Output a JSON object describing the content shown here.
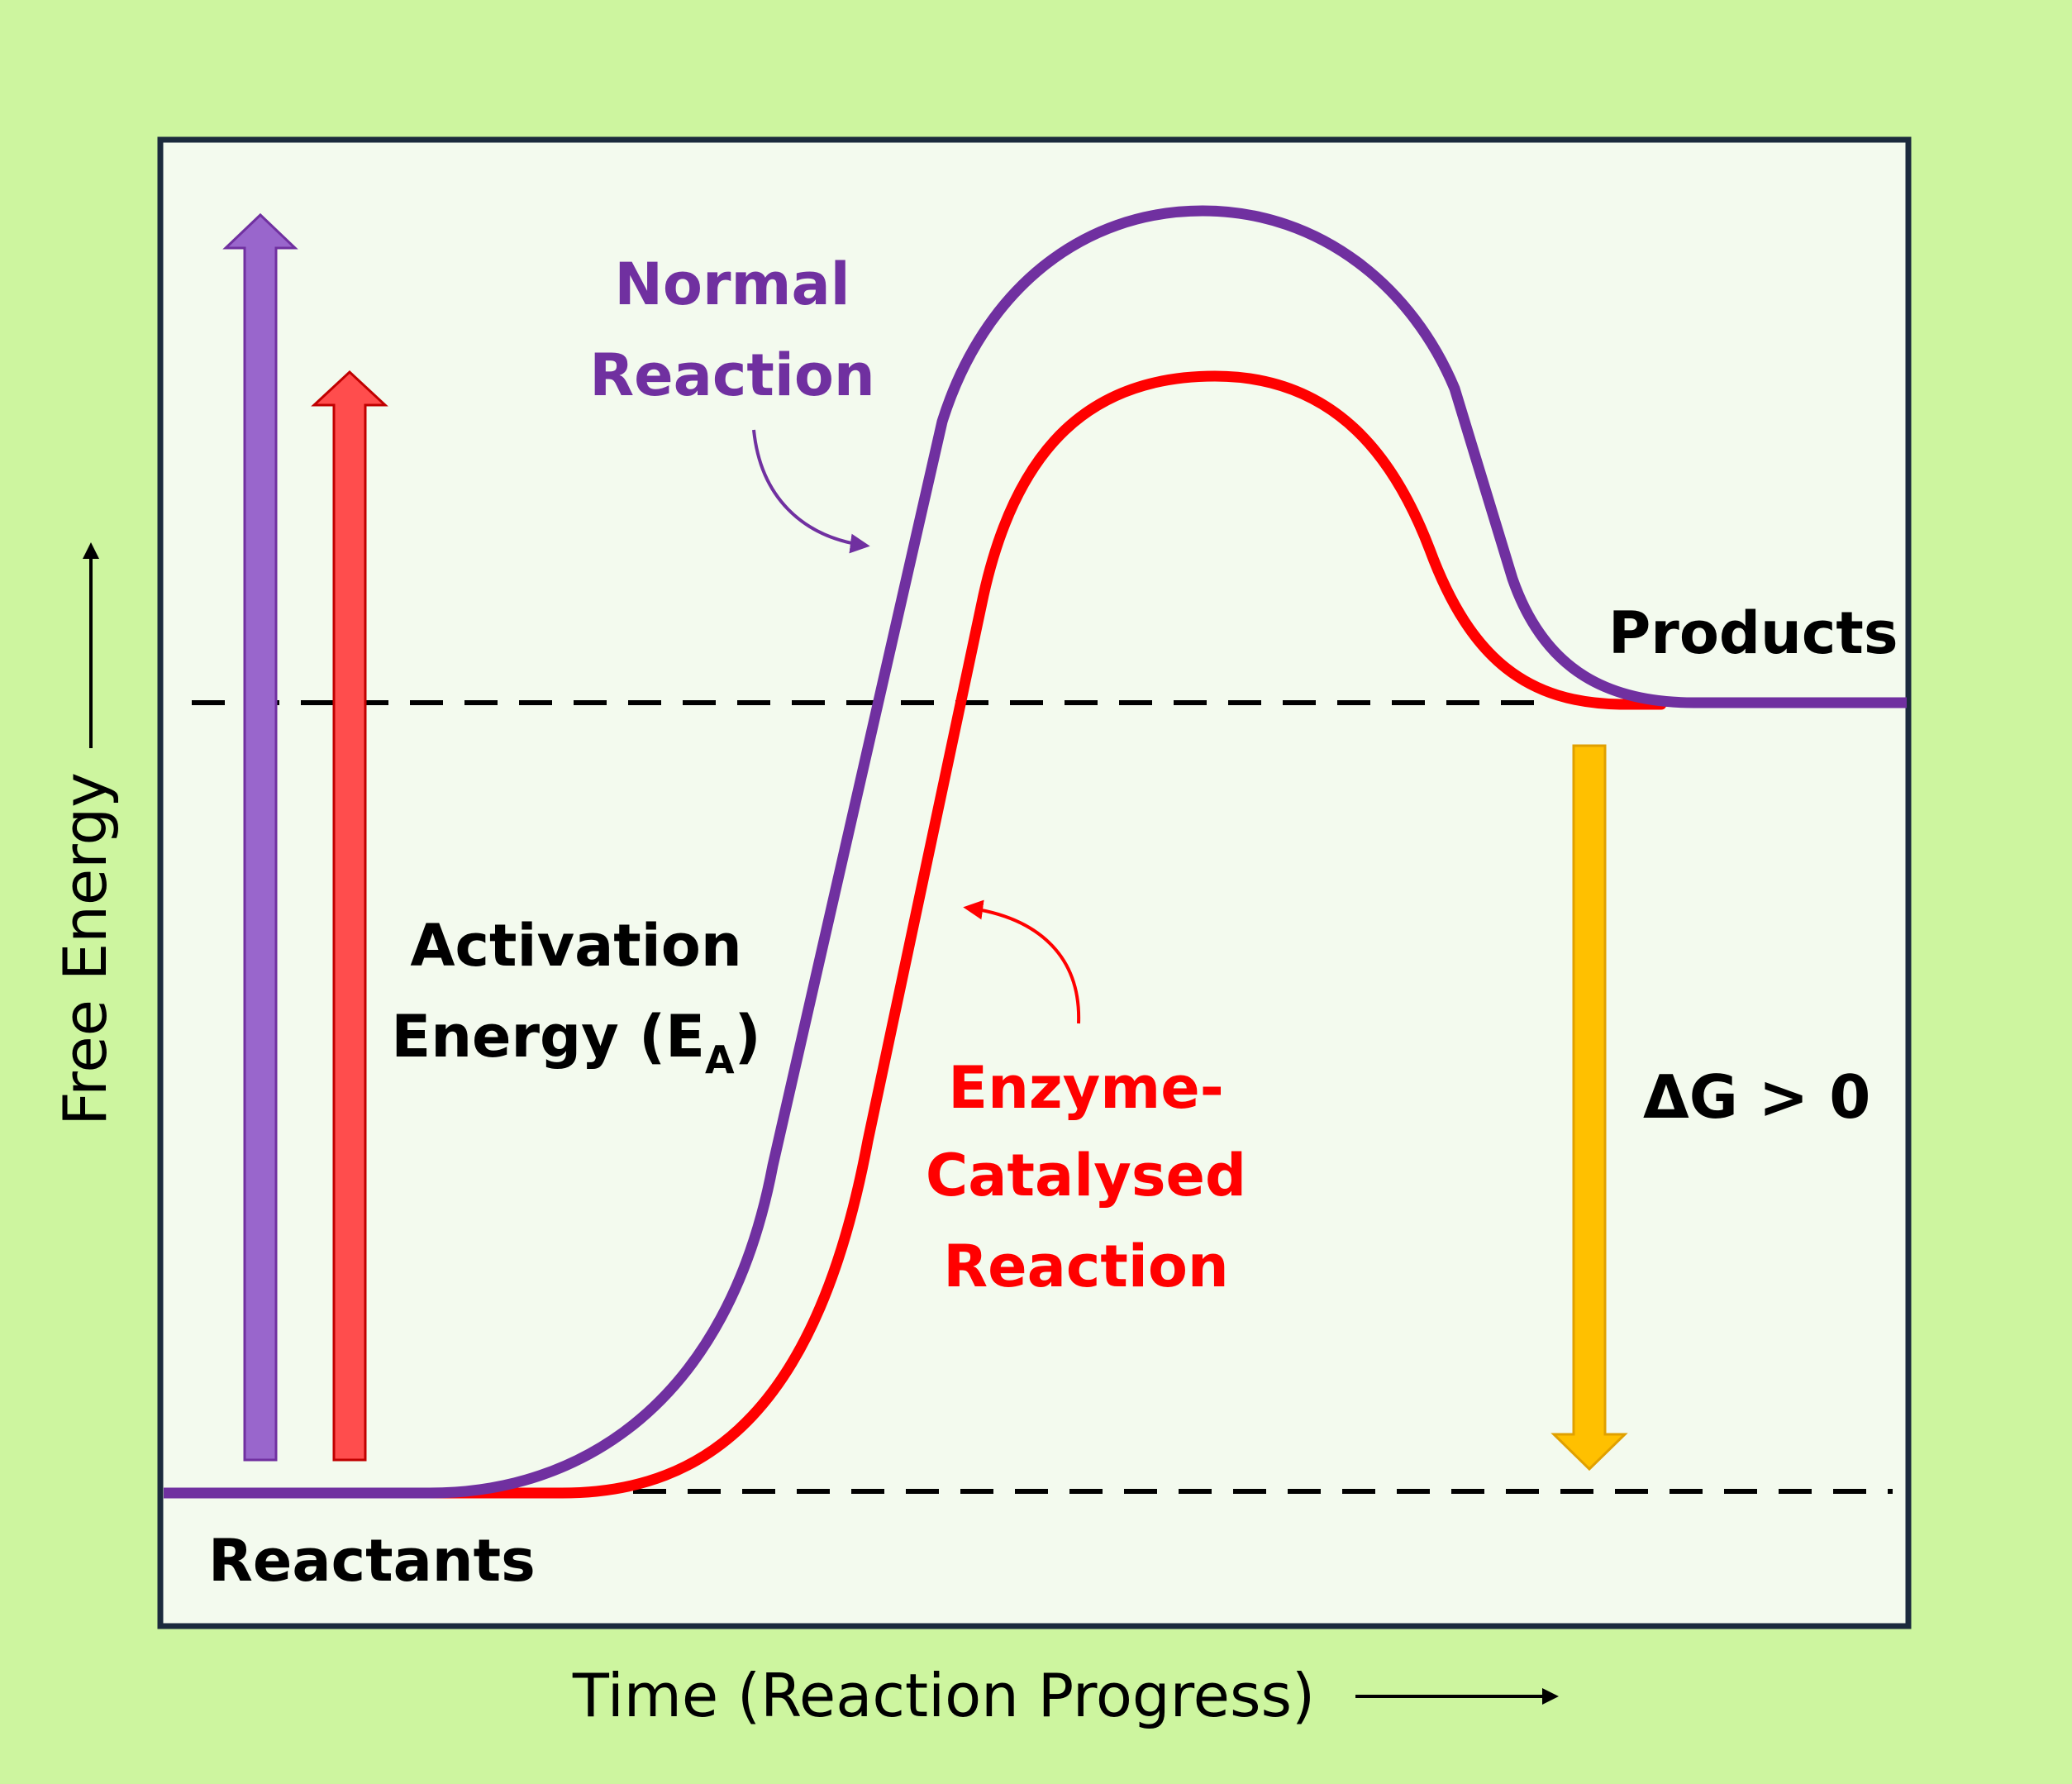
{
  "colors": {
    "outer_bg": "#cdf59f",
    "plot_bg": "#f3faee",
    "frame": "#1b2a3d",
    "normal": "#7030a0",
    "normal_arrow_fill": "#9966cc",
    "enzyme": "#ff0000",
    "enzyme_arrow_fill": "#ff4d4d",
    "delta_arrow_fill": "#ffc000",
    "delta_arrow_stroke": "#e0a000",
    "text": "#000000"
  },
  "axes": {
    "y_label": "Free Energy",
    "x_label": "Time (Reaction Progress)"
  },
  "labels": {
    "normal_line1": "Normal",
    "normal_line2": "Reaction",
    "activation_line1": "Activation",
    "activation_line2_main": "Energy (E",
    "activation_line2_sub": "A",
    "activation_line2_end": ")",
    "enzyme_line1": "Enzyme-",
    "enzyme_line2": "Catalysed",
    "enzyme_line3": "Reaction",
    "products": "Products",
    "reactants": "Reactants",
    "delta_g": "ΔG > 0"
  },
  "icons": {
    "y_axis_arrow": "arrow-up-icon",
    "x_axis_arrow": "arrow-right-icon"
  }
}
